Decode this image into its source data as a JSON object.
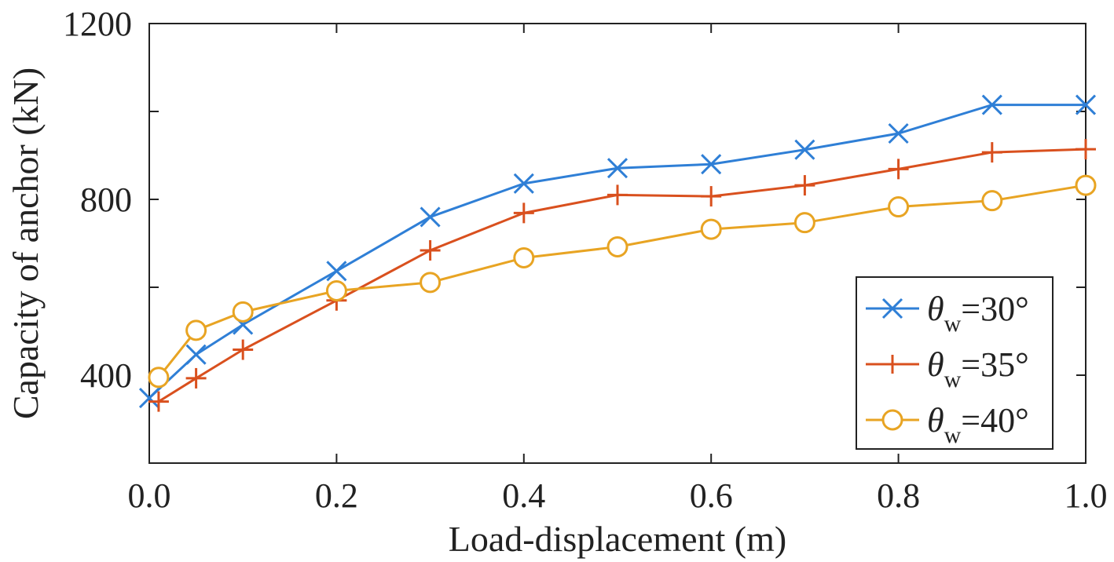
{
  "chart_data": {
    "type": "line",
    "title": "",
    "xlabel": "Load-displacement (m)",
    "ylabel": "Capacity of anchor (kN)",
    "xlim": [
      0,
      1.0
    ],
    "ylim": [
      200,
      1200
    ],
    "xticks": [
      0,
      0.2,
      0.4,
      0.6,
      0.8,
      1.0
    ],
    "xtick_labels": [
      "0.0",
      "0.2",
      "0.4",
      "0.6",
      "0.8",
      "1.0"
    ],
    "yticks": [
      200,
      400,
      600,
      800,
      1000,
      1200
    ],
    "ytick_labels": [
      "",
      "400",
      "",
      "800",
      "",
      "1200"
    ],
    "grid": false,
    "legend_position": "bottom-right",
    "series": [
      {
        "legend_symbol": "θ",
        "legend_sub": "w",
        "legend_value": "=30°",
        "color": "#2f7fd6",
        "marker": "x",
        "x": [
          0.0,
          0.05,
          0.1,
          0.2,
          0.3,
          0.4,
          0.5,
          0.6,
          0.7,
          0.8,
          0.9,
          1.0
        ],
        "y": [
          348,
          447,
          515,
          637,
          760,
          836,
          871,
          880,
          913,
          950,
          1015,
          1015
        ]
      },
      {
        "legend_symbol": "θ",
        "legend_sub": "w",
        "legend_value": "=35°",
        "color": "#d9501e",
        "marker": "+",
        "x": [
          0.01,
          0.05,
          0.1,
          0.2,
          0.3,
          0.4,
          0.5,
          0.6,
          0.7,
          0.8,
          0.9,
          1.0
        ],
        "y": [
          340,
          393,
          458,
          570,
          684,
          769,
          810,
          807,
          832,
          869,
          907,
          914
        ]
      },
      {
        "legend_symbol": "θ",
        "legend_sub": "w",
        "legend_value": "=40°",
        "color": "#e8a423",
        "marker": "o",
        "x": [
          0.01,
          0.05,
          0.1,
          0.2,
          0.3,
          0.4,
          0.5,
          0.6,
          0.7,
          0.8,
          0.9,
          1.0
        ],
        "y": [
          395,
          502,
          544,
          592,
          611,
          667,
          692,
          732,
          747,
          783,
          797,
          832
        ]
      }
    ]
  }
}
